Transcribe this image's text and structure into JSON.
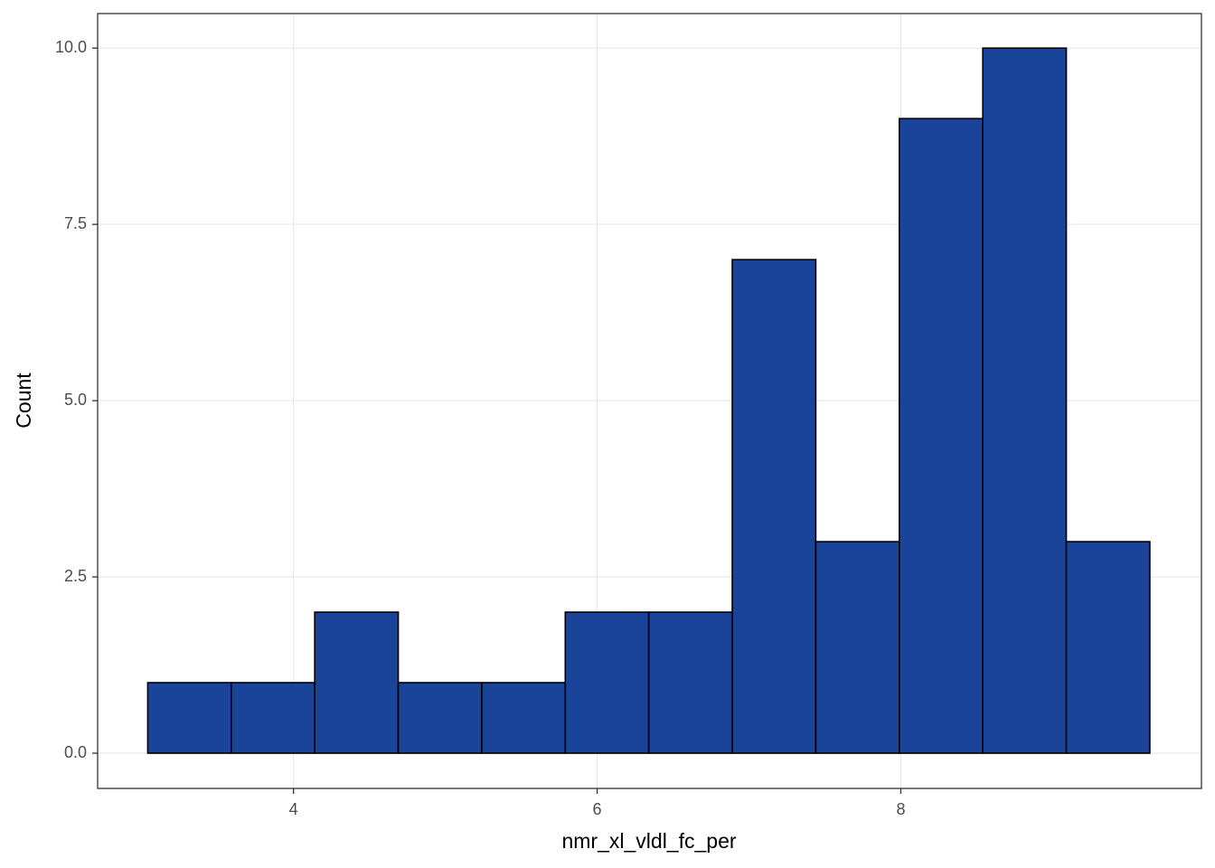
{
  "chart_data": {
    "type": "histogram",
    "x_label": "nmr_xl_vldl_fc_per",
    "y_label": "Count",
    "bins": [
      3.04,
      3.59,
      4.14,
      4.69,
      5.24,
      5.79,
      6.34,
      6.89,
      7.44,
      7.99,
      8.54,
      9.09,
      9.64
    ],
    "values": [
      1,
      1,
      2,
      1,
      1,
      2,
      2,
      7,
      3,
      9,
      10,
      3
    ],
    "color": "#1a4499",
    "edge_color": "#000000",
    "xlim": [
      2.71,
      9.98
    ],
    "ylim": [
      -0.5,
      10.49
    ],
    "xticks": [
      4,
      6,
      8
    ],
    "yticks": [
      {
        "value": 0,
        "label": "0.0"
      },
      {
        "value": 2.5,
        "label": "2.5"
      },
      {
        "value": 5,
        "label": "5.0"
      },
      {
        "value": 7.5,
        "label": "7.5"
      },
      {
        "value": 10,
        "label": "10.0"
      }
    ],
    "grid": true
  }
}
